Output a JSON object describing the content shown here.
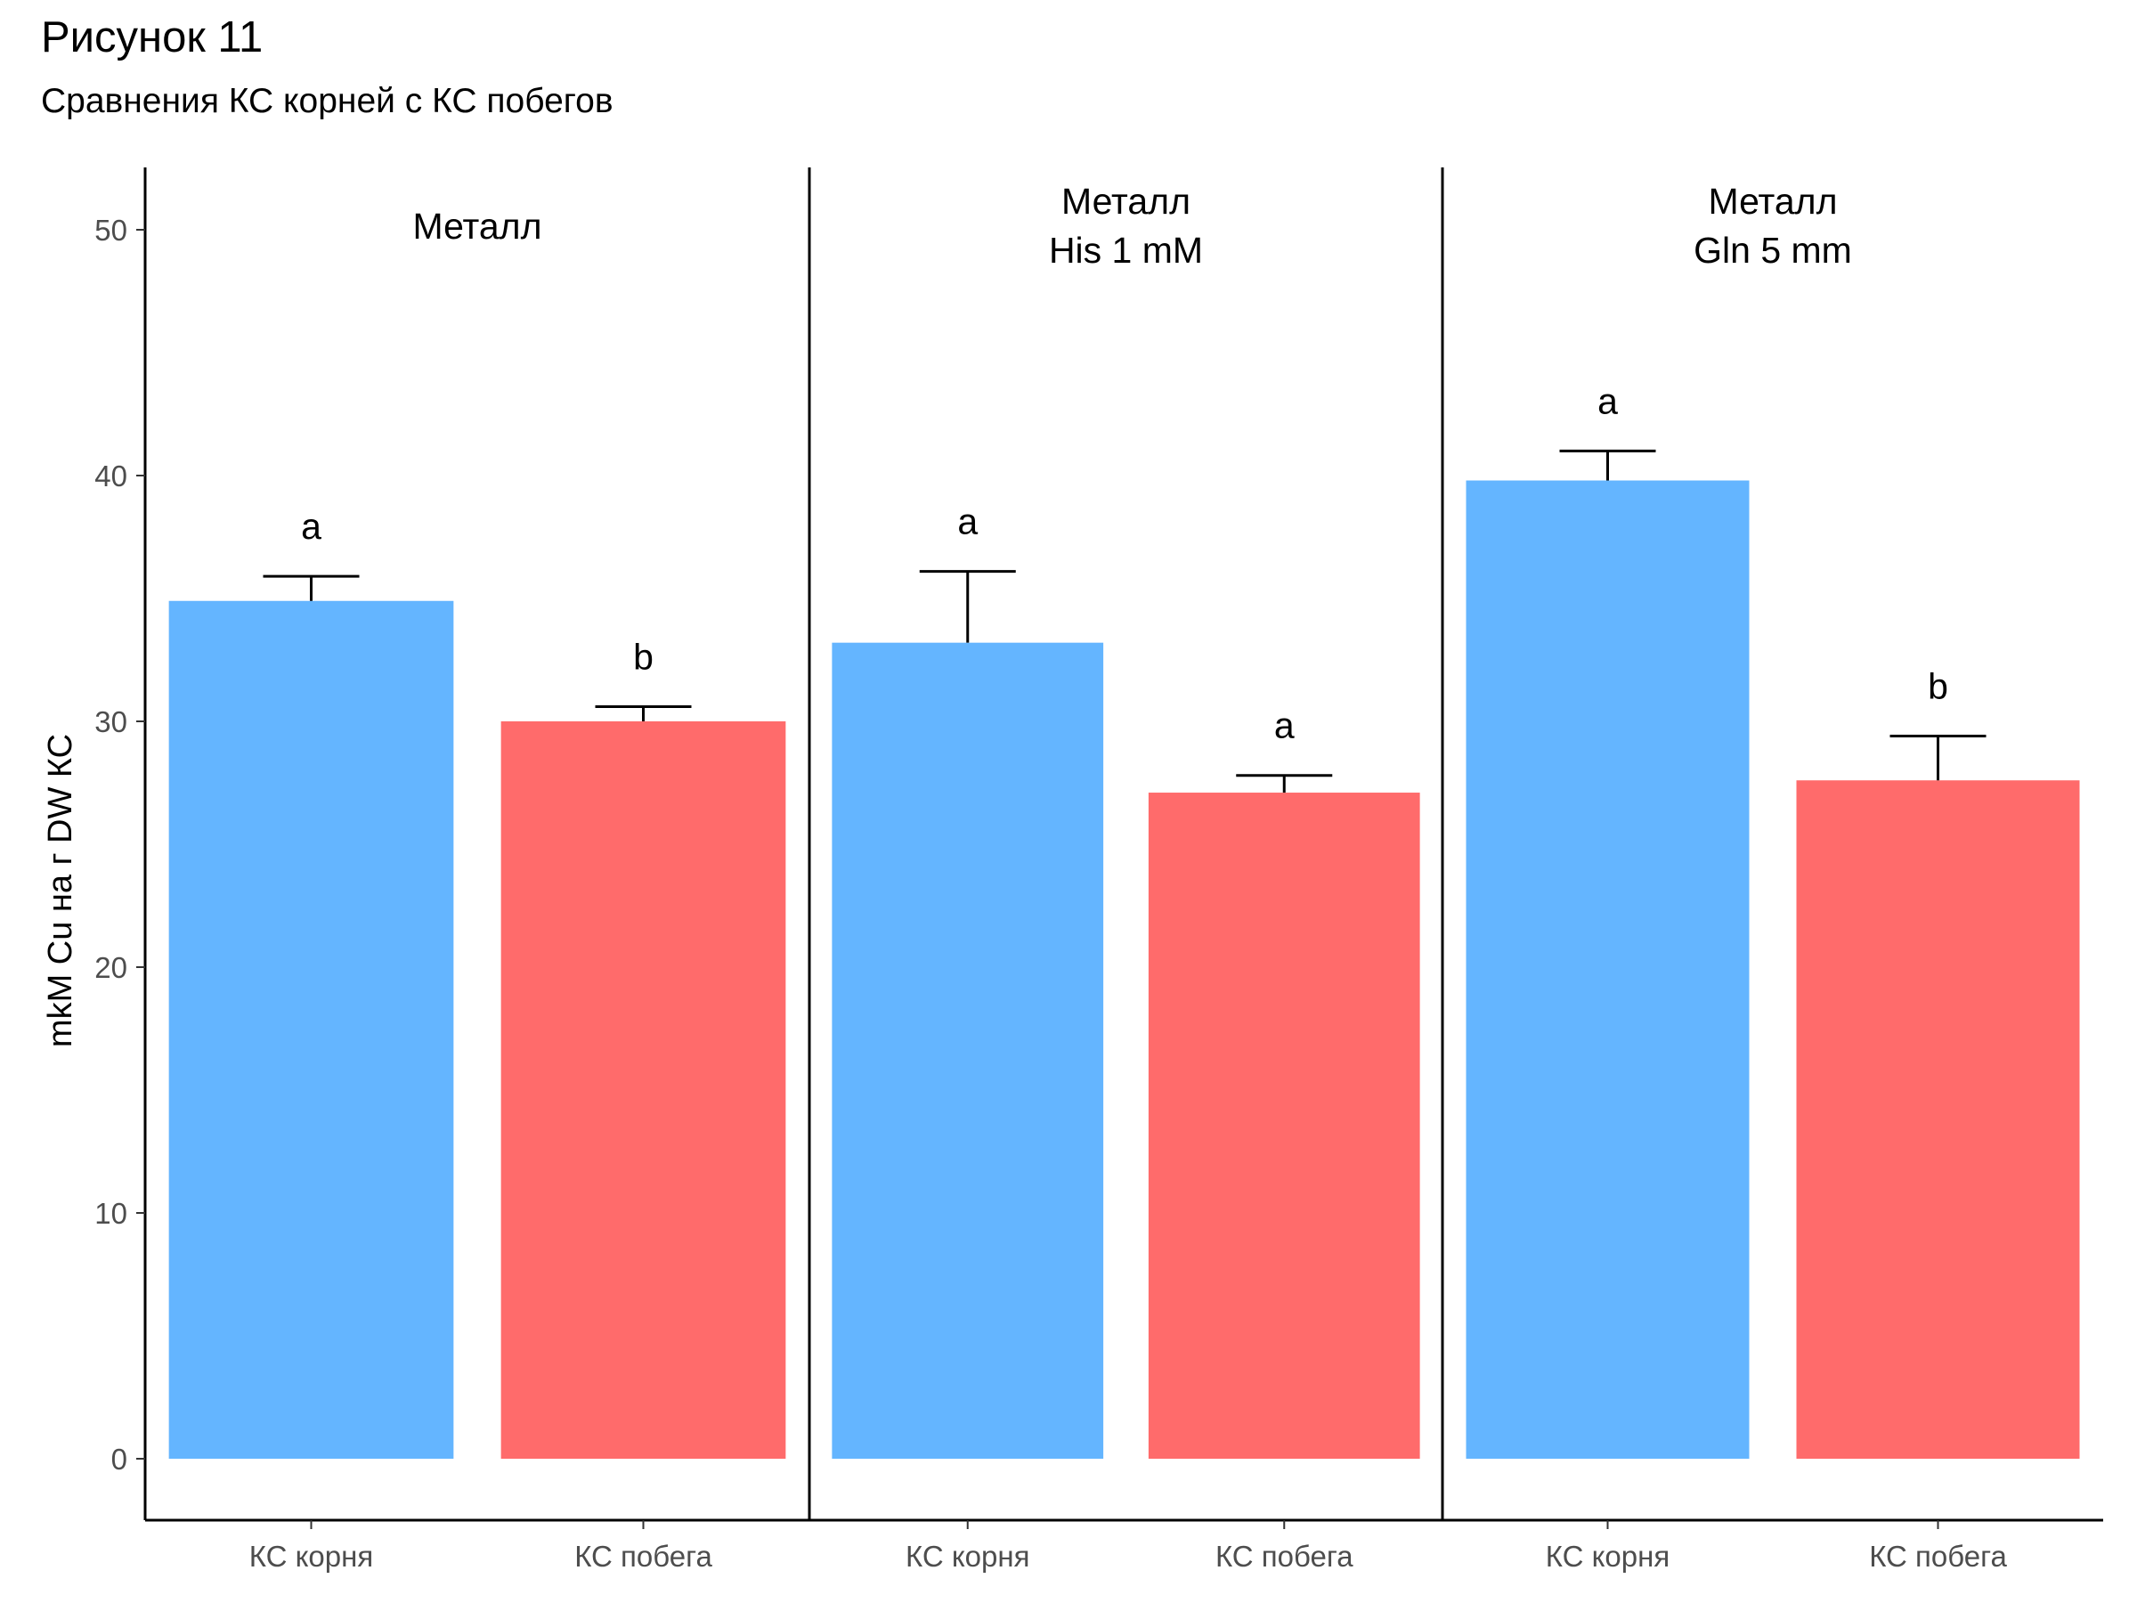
{
  "chart_data": {
    "type": "bar",
    "title": "Рисунок 11",
    "subtitle": "Сравнения КС корней с КС побегов",
    "ylabel": "mkM Cu на г DW КС",
    "xlabel": "",
    "ylim": [
      0,
      50
    ],
    "y_ticks": [
      0,
      10,
      20,
      30,
      40,
      50
    ],
    "grid": false,
    "legend": "none",
    "categories": [
      "КС корня",
      "КС побега"
    ],
    "colors": {
      "КС корня": "#64b5ff",
      "КС побега": "#ff6b6b"
    },
    "panels": [
      {
        "label_lines": [
          "Металл"
        ],
        "bars": [
          {
            "category": "КС корня",
            "value": 34.9,
            "error": 1.0,
            "letter": "a"
          },
          {
            "category": "КС побега",
            "value": 30.0,
            "error": 0.6,
            "letter": "b"
          }
        ]
      },
      {
        "label_lines": [
          "Металл",
          "His 1 mM"
        ],
        "bars": [
          {
            "category": "КС корня",
            "value": 33.2,
            "error": 2.9,
            "letter": "a"
          },
          {
            "category": "КС побега",
            "value": 27.1,
            "error": 0.7,
            "letter": "a"
          }
        ]
      },
      {
        "label_lines": [
          "Металл",
          "Gln 5 mm"
        ],
        "bars": [
          {
            "category": "КС корня",
            "value": 39.8,
            "error": 1.2,
            "letter": "a"
          },
          {
            "category": "КС побега",
            "value": 27.6,
            "error": 1.8,
            "letter": "b"
          }
        ]
      }
    ]
  }
}
